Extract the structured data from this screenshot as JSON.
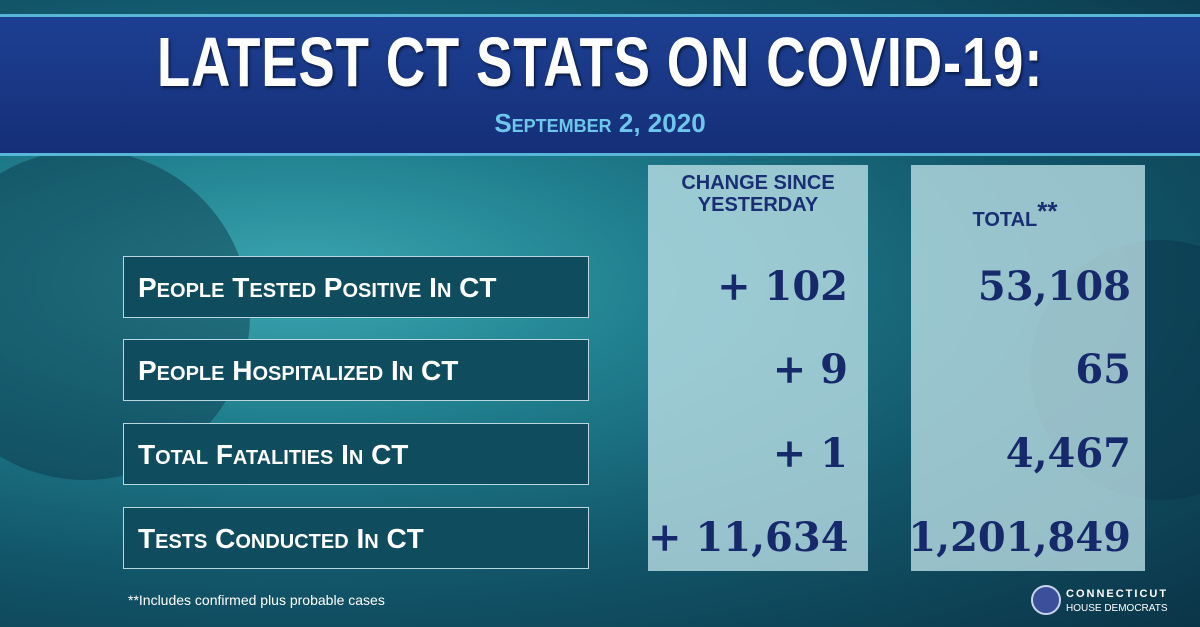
{
  "header": {
    "title": "LATEST CT STATS ON COVID-19:",
    "date": "September 2, 2020"
  },
  "table": {
    "columns": [
      {
        "label": "CHANGE SINCE YESTERDAY"
      },
      {
        "label": "TOTAL",
        "marker": "**"
      }
    ],
    "rows": [
      {
        "label": "People Tested Positive In CT",
        "change": "+ 102",
        "total": "53,108"
      },
      {
        "label": "People Hospitalized In CT",
        "change": "+ 9",
        "total": "65"
      },
      {
        "label": "Total Fatalities In CT",
        "change": "+ 1",
        "total": "4,467"
      },
      {
        "label": "Tests Conducted In CT",
        "change": "+ 11,634",
        "total": "1,201,849"
      }
    ]
  },
  "footnote": "**Includes confirmed plus probable cases",
  "logo": {
    "line1": "CONNECTICUT",
    "line2": "HOUSE DEMOCRATS"
  }
}
